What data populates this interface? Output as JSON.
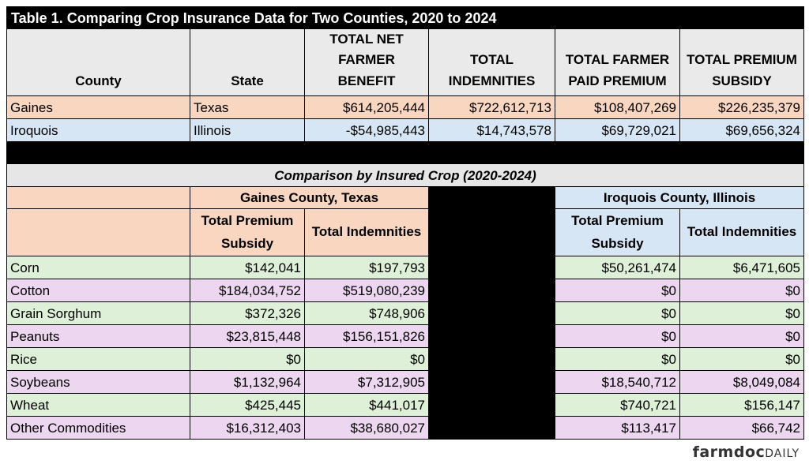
{
  "title": "Table 1. Comparing Crop Insurance Data for Two Counties, 2020 to 2024",
  "summary": {
    "headers": [
      "County",
      "State",
      "TOTAL NET FARMER BENEFIT",
      "TOTAL INDEMNITIES",
      "TOTAL FARMER PAID PREMIUM",
      "TOTAL PREMIUM SUBSIDY"
    ],
    "rows": [
      [
        "Gaines",
        "Texas",
        "$614,205,444",
        "$722,612,713",
        "$108,407,269",
        "$226,235,379"
      ],
      [
        "Iroquois",
        "Illinois",
        "-$54,985,443",
        "$14,743,578",
        "$69,729,021",
        "$69,656,324"
      ]
    ]
  },
  "comparison": {
    "subtitle": "Comparison by Insured Crop (2020-2024)",
    "group_left": "Gaines County, Texas",
    "group_right": "Iroquois County, Illinois",
    "col_subsidy": "Total Premium Subsidy",
    "col_indemnities": "Total Indemnities",
    "rows": [
      [
        "Corn",
        "$142,041",
        "$197,793",
        "$50,261,474",
        "$6,471,605"
      ],
      [
        "Cotton",
        "$184,034,752",
        "$519,080,239",
        "$0",
        "$0"
      ],
      [
        "Grain Sorghum",
        "$372,326",
        "$748,906",
        "$0",
        "$0"
      ],
      [
        "Peanuts",
        "$23,815,448",
        "$156,151,826",
        "$0",
        "$0"
      ],
      [
        "Rice",
        "$0",
        "$0",
        "$0",
        "$0"
      ],
      [
        "Soybeans",
        "$1,132,964",
        "$7,312,905",
        "$18,540,712",
        "$8,049,084"
      ],
      [
        "Wheat",
        "$425,445",
        "$441,017",
        "$740,721",
        "$156,147"
      ],
      [
        "Other Commodities",
        "$16,312,403",
        "$38,680,027",
        "$113,417",
        "$66,742"
      ]
    ]
  },
  "logo": {
    "brand": "farmdoc",
    "suffix": "DAILY"
  },
  "colors": {
    "salmon": "#f9d6c0",
    "blue": "#d7e6f5",
    "green": "#dff0d8",
    "pink": "#edd6ef",
    "header_gray": "#eaeaea"
  }
}
